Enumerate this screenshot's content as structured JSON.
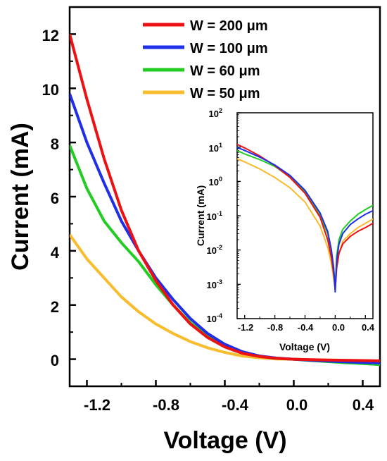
{
  "chart_data": [
    {
      "type": "line",
      "xlabel": "Voltage (V)",
      "ylabel": "Current (mA)",
      "xlim": [
        -1.3,
        0.5
      ],
      "ylim": [
        -1,
        13
      ],
      "x_ticks": [
        "-1.2",
        "-0.8",
        "-0.4",
        "0.0",
        "0.4"
      ],
      "y_ticks": [
        "0",
        "2",
        "4",
        "6",
        "8",
        "10",
        "12"
      ],
      "legend_position": "top-center",
      "series": [
        {
          "name": "W = 200 μm",
          "color": "#ee1111",
          "x": [
            -1.3,
            -1.2,
            -1.1,
            -1.0,
            -0.9,
            -0.8,
            -0.7,
            -0.6,
            -0.5,
            -0.4,
            -0.3,
            -0.2,
            -0.1,
            0.0,
            0.1,
            0.2,
            0.3,
            0.4,
            0.5
          ],
          "y": [
            12.0,
            9.6,
            7.4,
            5.5,
            4.0,
            2.9,
            2.0,
            1.3,
            0.8,
            0.45,
            0.22,
            0.1,
            0.03,
            0.0,
            -0.02,
            -0.03,
            -0.04,
            -0.05,
            -0.06
          ]
        },
        {
          "name": "W = 100 μm",
          "color": "#1f2fe8",
          "x": [
            -1.3,
            -1.2,
            -1.1,
            -1.0,
            -0.9,
            -0.8,
            -0.7,
            -0.6,
            -0.5,
            -0.4,
            -0.3,
            -0.2,
            -0.1,
            0.0,
            0.1,
            0.2,
            0.3,
            0.4,
            0.5
          ],
          "y": [
            9.8,
            8.0,
            6.5,
            5.1,
            4.0,
            3.0,
            2.2,
            1.5,
            0.95,
            0.55,
            0.28,
            0.12,
            0.04,
            0.0,
            -0.04,
            -0.07,
            -0.1,
            -0.12,
            -0.14
          ]
        },
        {
          "name": "W = 60 μm",
          "color": "#22cc22",
          "x": [
            -1.3,
            -1.2,
            -1.1,
            -1.0,
            -0.9,
            -0.8,
            -0.7,
            -0.6,
            -0.5,
            -0.4,
            -0.3,
            -0.2,
            -0.1,
            0.0,
            0.1,
            0.2,
            0.3,
            0.4,
            0.5
          ],
          "y": [
            7.9,
            6.3,
            5.1,
            4.3,
            3.6,
            2.75,
            2.0,
            1.35,
            0.85,
            0.5,
            0.25,
            0.1,
            0.03,
            0.0,
            -0.05,
            -0.09,
            -0.13,
            -0.16,
            -0.2
          ]
        },
        {
          "name": "W = 50 μm",
          "color": "#f8bc2c",
          "x": [
            -1.3,
            -1.2,
            -1.1,
            -1.0,
            -0.9,
            -0.8,
            -0.7,
            -0.6,
            -0.5,
            -0.4,
            -0.3,
            -0.2,
            -0.1,
            0.0,
            0.1,
            0.2,
            0.3,
            0.4,
            0.5
          ],
          "y": [
            4.6,
            3.7,
            3.0,
            2.3,
            1.75,
            1.3,
            0.95,
            0.65,
            0.42,
            0.25,
            0.12,
            0.05,
            0.01,
            0.0,
            -0.02,
            -0.04,
            -0.05,
            -0.06,
            -0.08
          ]
        }
      ]
    },
    {
      "type": "line",
      "xlabel": "Voltage (V)",
      "ylabel": "Current (mA)",
      "xlim": [
        -1.3,
        0.5
      ],
      "ylim": [
        0.0001,
        100
      ],
      "y_scale": "log",
      "x_ticks": [
        "-1.2",
        "-0.8",
        "-0.4",
        "0.0",
        "0.4"
      ],
      "y_ticks": [
        {
          "base": "10",
          "exp": "2"
        },
        {
          "base": "10",
          "exp": "1"
        },
        {
          "base": "10",
          "exp": "0"
        },
        {
          "base": "10",
          "exp": "-1"
        },
        {
          "base": "10",
          "exp": "-2"
        },
        {
          "base": "10",
          "exp": "-3"
        },
        {
          "base": "10",
          "exp": "-4"
        }
      ],
      "series": [
        {
          "color": "#ee1111",
          "x": [
            -1.3,
            -1.2,
            -1.0,
            -0.8,
            -0.6,
            -0.4,
            -0.2,
            -0.1,
            -0.05,
            -0.02,
            0.0,
            0.02,
            0.05,
            0.1,
            0.2,
            0.3,
            0.4,
            0.5
          ],
          "y": [
            12.0,
            9.5,
            5.5,
            2.9,
            1.3,
            0.45,
            0.09,
            0.02,
            0.006,
            0.002,
            0.0007,
            0.003,
            0.008,
            0.015,
            0.025,
            0.035,
            0.045,
            0.06
          ]
        },
        {
          "color": "#1f2fe8",
          "x": [
            -1.3,
            -1.2,
            -1.0,
            -0.8,
            -0.6,
            -0.4,
            -0.2,
            -0.1,
            -0.05,
            -0.02,
            0.0,
            0.02,
            0.05,
            0.1,
            0.2,
            0.3,
            0.4,
            0.5
          ],
          "y": [
            9.8,
            8.0,
            5.1,
            3.0,
            1.5,
            0.55,
            0.12,
            0.035,
            0.01,
            0.003,
            0.0006,
            0.005,
            0.015,
            0.03,
            0.055,
            0.08,
            0.11,
            0.14
          ]
        },
        {
          "color": "#22cc22",
          "x": [
            -1.3,
            -1.2,
            -1.0,
            -0.8,
            -0.6,
            -0.4,
            -0.2,
            -0.1,
            -0.05,
            -0.02,
            0.0,
            0.02,
            0.05,
            0.1,
            0.2,
            0.3,
            0.4,
            0.5
          ],
          "y": [
            7.9,
            6.3,
            4.3,
            2.75,
            1.35,
            0.5,
            0.1,
            0.03,
            0.009,
            0.003,
            0.0008,
            0.007,
            0.02,
            0.04,
            0.07,
            0.11,
            0.15,
            0.2
          ]
        },
        {
          "color": "#f8bc2c",
          "x": [
            -1.3,
            -1.2,
            -1.0,
            -0.8,
            -0.6,
            -0.4,
            -0.2,
            -0.1,
            -0.05,
            -0.02,
            0.0,
            0.02,
            0.05,
            0.1,
            0.2,
            0.3,
            0.4,
            0.5
          ],
          "y": [
            4.6,
            3.7,
            2.3,
            1.3,
            0.65,
            0.25,
            0.05,
            0.012,
            0.004,
            0.0015,
            0.0007,
            0.003,
            0.008,
            0.018,
            0.03,
            0.045,
            0.06,
            0.08
          ]
        }
      ]
    }
  ]
}
